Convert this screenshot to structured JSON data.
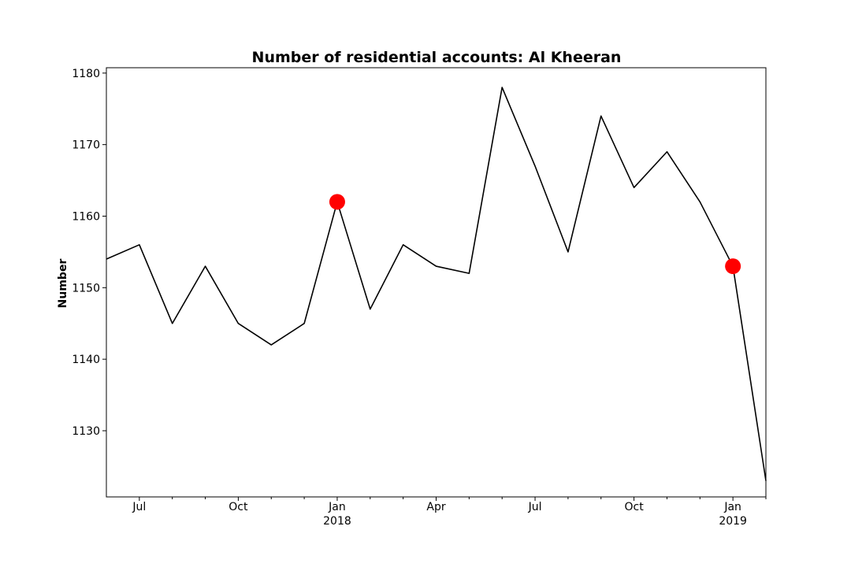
{
  "chart_data": {
    "type": "line",
    "title": "Number of residential accounts: Al Kheeran",
    "xlabel": "",
    "ylabel": "Number",
    "grid": false,
    "x": [
      "2017-06",
      "2017-07",
      "2017-08",
      "2017-09",
      "2017-10",
      "2017-11",
      "2017-12",
      "2018-01",
      "2018-02",
      "2018-03",
      "2018-04",
      "2018-05",
      "2018-06",
      "2018-07",
      "2018-08",
      "2018-09",
      "2018-10",
      "2018-11",
      "2018-12",
      "2019-01",
      "2019-02"
    ],
    "series": [
      {
        "name": "",
        "color": "#000000",
        "values": [
          1154,
          1156,
          1145,
          1153,
          1145,
          1142,
          1145,
          1162,
          1147,
          1156,
          1153,
          1152,
          1178,
          1167,
          1155,
          1174,
          1164,
          1169,
          1162,
          1153,
          1123
        ]
      }
    ],
    "highlight_points": [
      {
        "x": "2018-01",
        "y": 1162,
        "color": "#ff0000"
      },
      {
        "x": "2019-01",
        "y": 1153,
        "color": "#ff0000"
      }
    ],
    "ylim": [
      1120.75,
      1180.75
    ],
    "xlim": [
      "2017-06",
      "2019-02"
    ],
    "yticks": [
      1130,
      1140,
      1150,
      1160,
      1170,
      1180
    ],
    "xticks": [
      {
        "x": "2017-07",
        "label": "Jul",
        "sublabel": ""
      },
      {
        "x": "2017-10",
        "label": "Oct",
        "sublabel": ""
      },
      {
        "x": "2018-01",
        "label": "Jan",
        "sublabel": "2018"
      },
      {
        "x": "2018-04",
        "label": "Apr",
        "sublabel": ""
      },
      {
        "x": "2018-07",
        "label": "Jul",
        "sublabel": ""
      },
      {
        "x": "2018-10",
        "label": "Oct",
        "sublabel": ""
      },
      {
        "x": "2019-01",
        "label": "Jan",
        "sublabel": "2019"
      }
    ],
    "minor_xticks": [
      "2017-08",
      "2017-09",
      "2017-11",
      "2017-12",
      "2018-02",
      "2018-03",
      "2018-05",
      "2018-06",
      "2018-08",
      "2018-09",
      "2018-11",
      "2018-12",
      "2019-02"
    ]
  }
}
